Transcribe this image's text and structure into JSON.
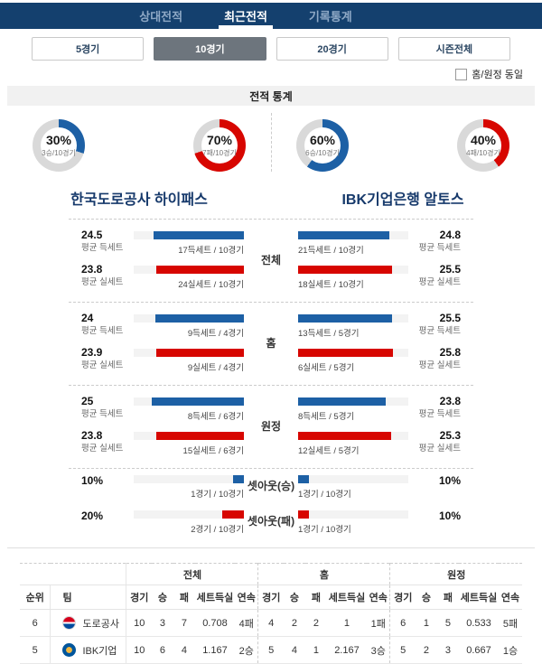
{
  "colors": {
    "blue": "#1d60a5",
    "red": "#d70600",
    "track": "#d9d9d9"
  },
  "tabs": {
    "items": [
      {
        "label": "상대전적"
      },
      {
        "label": "최근전적"
      },
      {
        "label": "기록통계"
      }
    ]
  },
  "filters": {
    "buttons": [
      {
        "label": "5경기"
      },
      {
        "label": "10경기"
      },
      {
        "label": "20경기"
      },
      {
        "label": "시즌전체"
      }
    ]
  },
  "checkbox": {
    "label": "홈/원정 동일",
    "checked": false
  },
  "section_title": "전적 통계",
  "teams": {
    "left": {
      "name": "한국도로공사 하이패스"
    },
    "right": {
      "name": "IBK기업은행 알토스"
    }
  },
  "donuts": [
    {
      "pct": 30,
      "label": "30%",
      "sub": "3승/10경기",
      "color": "blue"
    },
    {
      "pct": 70,
      "label": "70%",
      "sub": "7패/10경기",
      "color": "red"
    },
    {
      "pct": 60,
      "label": "60%",
      "sub": "6승/10경기",
      "color": "blue"
    },
    {
      "pct": 40,
      "label": "40%",
      "sub": "4패/10경기",
      "color": "red"
    }
  ],
  "compare_sections": [
    {
      "title": "전체",
      "rows": [
        {
          "metric": "평균 득세트",
          "color": "blue",
          "left": {
            "value": "24.5",
            "metric": "평균 득세트",
            "bar_label": "17득세트 / 10경기",
            "fill": 81.7
          },
          "right": {
            "value": "24.8",
            "metric": "평균 득세트",
            "bar_label": "21득세트 / 10경기",
            "fill": 82.7
          }
        },
        {
          "metric": "평균 실세트",
          "color": "red",
          "left": {
            "value": "23.8",
            "metric": "평균 실세트",
            "bar_label": "24실세트 / 10경기",
            "fill": 79.3
          },
          "right": {
            "value": "25.5",
            "metric": "평균 실세트",
            "bar_label": "18실세트 / 10경기",
            "fill": 85
          }
        }
      ]
    },
    {
      "title": "홈",
      "rows": [
        {
          "metric": "평균 득세트",
          "color": "blue",
          "left": {
            "value": "24",
            "metric": "평균 득세트",
            "bar_label": "9득세트 / 4경기",
            "fill": 80
          },
          "right": {
            "value": "25.5",
            "metric": "평균 득세트",
            "bar_label": "13득세트 / 5경기",
            "fill": 85
          }
        },
        {
          "metric": "평균 실세트",
          "color": "red",
          "left": {
            "value": "23.9",
            "metric": "평균 실세트",
            "bar_label": "9실세트 / 4경기",
            "fill": 79.7
          },
          "right": {
            "value": "25.8",
            "metric": "평균 실세트",
            "bar_label": "6실세트 / 5경기",
            "fill": 86
          }
        }
      ]
    },
    {
      "title": "원정",
      "rows": [
        {
          "metric": "평균 득세트",
          "color": "blue",
          "left": {
            "value": "25",
            "metric": "평균 득세트",
            "bar_label": "8득세트 / 6경기",
            "fill": 83.3
          },
          "right": {
            "value": "23.8",
            "metric": "평균 득세트",
            "bar_label": "8득세트 / 5경기",
            "fill": 79.3
          }
        },
        {
          "metric": "평균 실세트",
          "color": "red",
          "left": {
            "value": "23.8",
            "metric": "평균 실세트",
            "bar_label": "15실세트 / 6경기",
            "fill": 79.3
          },
          "right": {
            "value": "25.3",
            "metric": "평균 실세트",
            "bar_label": "12실세트 / 5경기",
            "fill": 84.3
          }
        }
      ]
    }
  ],
  "setout_rows": [
    {
      "title": "셋아웃(승)",
      "color": "blue",
      "left": {
        "pct": "10%",
        "fill": 10,
        "bar_label": "1경기 / 10경기"
      },
      "right": {
        "pct": "10%",
        "fill": 10,
        "bar_label": "1경기 / 10경기"
      }
    },
    {
      "title": "셋아웃(패)",
      "color": "red",
      "left": {
        "pct": "20%",
        "fill": 20,
        "bar_label": "2경기 / 10경기"
      },
      "right": {
        "pct": "10%",
        "fill": 10,
        "bar_label": "1경기 / 10경기"
      }
    }
  ],
  "table": {
    "group_headers": [
      "전체",
      "홈",
      "원정"
    ],
    "base_headers": [
      "순위",
      "팀"
    ],
    "stat_headers": [
      "경기",
      "승",
      "패",
      "세트득실",
      "연속"
    ],
    "rows": [
      {
        "rank": "6",
        "team": "도로공사",
        "cells": [
          "10",
          "3",
          "7",
          "0.708",
          "4패",
          "4",
          "2",
          "2",
          "1",
          "1패",
          "6",
          "1",
          "5",
          "0.533",
          "5패"
        ]
      },
      {
        "rank": "5",
        "team": "IBK기업",
        "cells": [
          "10",
          "6",
          "4",
          "1.167",
          "2승",
          "5",
          "4",
          "1",
          "2.167",
          "3승",
          "5",
          "2",
          "3",
          "0.667",
          "1승"
        ]
      }
    ]
  }
}
